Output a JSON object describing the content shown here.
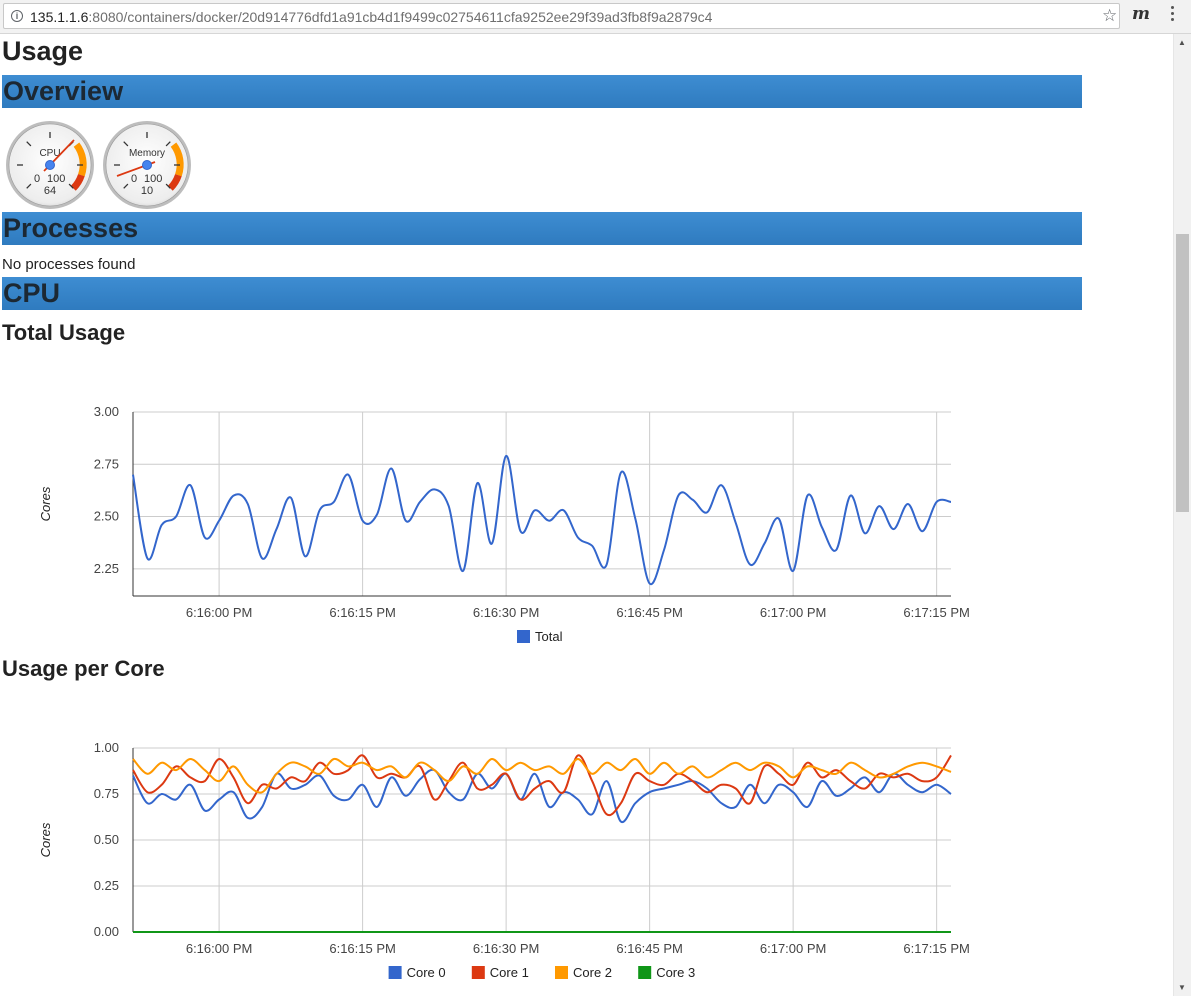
{
  "browser": {
    "url_host": "135.1.1.6",
    "url_path": ":8080/containers/docker/20d914776dfd1a91cb4d1f9499c02754611cfa9252ee29f39ad3fb8f9a2879c4",
    "info_icon": "i",
    "star_icon": "☆",
    "extension_icon": "m"
  },
  "page": {
    "title": "Usage",
    "overview_heading": "Overview",
    "processes_heading": "Processes",
    "processes_empty": "No processes found",
    "cpu_heading": "CPU",
    "total_usage_heading": "Total Usage",
    "per_core_heading": "Usage per Core"
  },
  "gauges": [
    {
      "label": "CPU",
      "min": "0",
      "max": "100",
      "value": "64"
    },
    {
      "label": "Memory",
      "min": "0",
      "max": "100",
      "value": "10"
    }
  ],
  "colors": {
    "section_bar": "#3584c8",
    "total": "#3366cc",
    "core0": "#3366cc",
    "core1": "#dc3912",
    "core2": "#ff9900",
    "core3": "#109618"
  },
  "chart_data": [
    {
      "type": "line",
      "title": "Total Usage",
      "ylabel": "Cores",
      "ylim": [
        2.12,
        3.0
      ],
      "xlim_seconds": [
        -9,
        76.5
      ],
      "x_ticks": [
        "6:16:00 PM",
        "6:16:15 PM",
        "6:16:30 PM",
        "6:16:45 PM",
        "6:17:00 PM",
        "6:17:15 PM"
      ],
      "y_ticks": [
        "3.00",
        "2.75",
        "2.50",
        "2.25"
      ],
      "legend": [
        "Total"
      ],
      "series": [
        {
          "name": "Total",
          "color": "#3366cc",
          "values": [
            2.7,
            2.3,
            2.46,
            2.5,
            2.65,
            2.4,
            2.48,
            2.6,
            2.56,
            2.3,
            2.44,
            2.59,
            2.31,
            2.53,
            2.57,
            2.7,
            2.48,
            2.51,
            2.73,
            2.48,
            2.57,
            2.63,
            2.55,
            2.24,
            2.66,
            2.37,
            2.79,
            2.43,
            2.53,
            2.48,
            2.53,
            2.4,
            2.36,
            2.27,
            2.71,
            2.49,
            2.18,
            2.34,
            2.6,
            2.58,
            2.52,
            2.65,
            2.47,
            2.27,
            2.37,
            2.49,
            2.24,
            2.6,
            2.45,
            2.34,
            2.6,
            2.42,
            2.55,
            2.44,
            2.56,
            2.43,
            2.57,
            2.57
          ]
        }
      ]
    },
    {
      "type": "line",
      "title": "Usage per Core",
      "ylabel": "Cores",
      "ylim": [
        0,
        1.0
      ],
      "xlim_seconds": [
        -9,
        76.5
      ],
      "x_ticks": [
        "6:16:00 PM",
        "6:16:15 PM",
        "6:16:30 PM",
        "6:16:45 PM",
        "6:17:00 PM",
        "6:17:15 PM"
      ],
      "y_ticks": [
        "1.00",
        "0.75",
        "0.50",
        "0.25",
        "0.00"
      ],
      "legend": [
        "Core 0",
        "Core 1",
        "Core 2",
        "Core 3"
      ],
      "series": [
        {
          "name": "Core 0",
          "color": "#3366cc",
          "values": [
            0.85,
            0.7,
            0.75,
            0.72,
            0.8,
            0.66,
            0.72,
            0.76,
            0.62,
            0.68,
            0.86,
            0.78,
            0.8,
            0.85,
            0.74,
            0.72,
            0.8,
            0.68,
            0.84,
            0.74,
            0.83,
            0.88,
            0.76,
            0.72,
            0.86,
            0.78,
            0.86,
            0.72,
            0.86,
            0.68,
            0.76,
            0.72,
            0.64,
            0.82,
            0.6,
            0.7,
            0.76,
            0.78,
            0.8,
            0.82,
            0.78,
            0.7,
            0.68,
            0.8,
            0.7,
            0.8,
            0.76,
            0.68,
            0.82,
            0.74,
            0.78,
            0.84,
            0.76,
            0.86,
            0.8,
            0.76,
            0.8,
            0.75
          ]
        },
        {
          "name": "Core 1",
          "color": "#dc3912",
          "values": [
            0.88,
            0.76,
            0.8,
            0.9,
            0.84,
            0.82,
            0.94,
            0.84,
            0.7,
            0.8,
            0.78,
            0.84,
            0.82,
            0.92,
            0.86,
            0.88,
            0.96,
            0.84,
            0.86,
            0.84,
            0.9,
            0.72,
            0.82,
            0.92,
            0.78,
            0.8,
            0.86,
            0.72,
            0.78,
            0.82,
            0.76,
            0.96,
            0.82,
            0.64,
            0.7,
            0.86,
            0.82,
            0.8,
            0.86,
            0.82,
            0.76,
            0.8,
            0.78,
            0.7,
            0.9,
            0.86,
            0.8,
            0.92,
            0.84,
            0.88,
            0.82,
            0.78,
            0.86,
            0.84,
            0.86,
            0.82,
            0.84,
            0.96
          ]
        },
        {
          "name": "Core 2",
          "color": "#ff9900",
          "values": [
            0.94,
            0.86,
            0.92,
            0.88,
            0.94,
            0.88,
            0.82,
            0.9,
            0.8,
            0.76,
            0.86,
            0.92,
            0.9,
            0.86,
            0.94,
            0.9,
            0.92,
            0.88,
            0.9,
            0.84,
            0.92,
            0.88,
            0.82,
            0.9,
            0.86,
            0.94,
            0.88,
            0.92,
            0.88,
            0.9,
            0.86,
            0.94,
            0.86,
            0.92,
            0.88,
            0.94,
            0.86,
            0.92,
            0.86,
            0.9,
            0.84,
            0.88,
            0.92,
            0.88,
            0.92,
            0.9,
            0.84,
            0.9,
            0.88,
            0.86,
            0.92,
            0.88,
            0.84,
            0.86,
            0.9,
            0.92,
            0.9,
            0.87
          ]
        },
        {
          "name": "Core 3",
          "color": "#109618",
          "values": [
            0.0,
            0.0,
            0.0,
            0.0,
            0.0,
            0.0,
            0.0,
            0.0,
            0.0,
            0.0,
            0.0,
            0.0,
            0.0,
            0.0,
            0.0,
            0.0,
            0.0,
            0.0,
            0.0,
            0.0,
            0.0,
            0.0,
            0.0,
            0.0,
            0.0,
            0.0,
            0.0,
            0.0,
            0.0,
            0.0,
            0.0,
            0.0,
            0.0,
            0.0,
            0.0,
            0.0,
            0.0,
            0.0,
            0.0,
            0.0,
            0.0,
            0.0,
            0.0,
            0.0,
            0.0,
            0.0,
            0.0,
            0.0,
            0.0,
            0.0,
            0.0,
            0.0,
            0.0,
            0.0,
            0.0,
            0.0,
            0.0,
            0.0
          ]
        }
      ]
    }
  ]
}
